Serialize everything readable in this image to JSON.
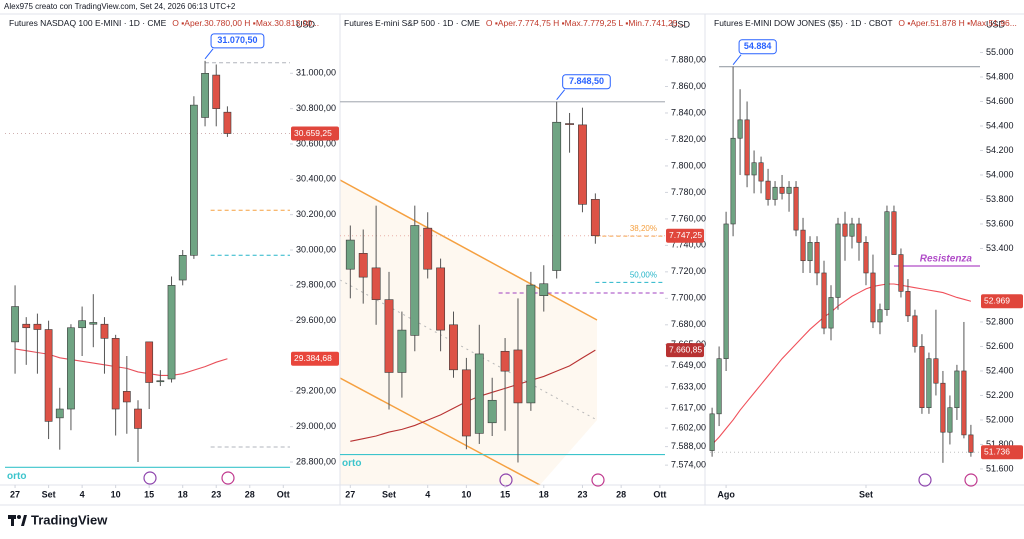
{
  "header": {
    "text": "Alex975 creato con TradingView.com, Set 24, 2026 06:13 UTC+2"
  },
  "footer": {
    "logo": "TradingView"
  },
  "chart_data": [
    {
      "type": "candlestick",
      "title": "Futures NASDAQ 100 E-MINI · 1D · CME",
      "legend_text": "O ▪Aper.30.780,00  H ▪Max.30.813,00...",
      "axis_unit": "USD",
      "up_color": "#6fa483",
      "down_color": "#dd5246",
      "ma_color": "#e8505a",
      "xlim": [
        -0.9,
        24.6
      ],
      "ylim": [
        28670,
        31330
      ],
      "xticks": [
        {
          "value": 0,
          "label": "27"
        },
        {
          "value": 3,
          "label": "Set"
        },
        {
          "value": 6,
          "label": "4"
        },
        {
          "value": 9,
          "label": "10"
        },
        {
          "value": 12,
          "label": "15"
        },
        {
          "value": 15,
          "label": "18"
        },
        {
          "value": 18,
          "label": "23"
        },
        {
          "value": 21,
          "label": "28"
        },
        {
          "value": 24,
          "label": "Ott"
        }
      ],
      "yticks": [
        {
          "value": 31000,
          "label": "31.000,00"
        },
        {
          "value": 30800,
          "label": "30.800,00"
        },
        {
          "value": 30600,
          "label": "30.600,00"
        },
        {
          "value": 30400,
          "label": "30.400,00"
        },
        {
          "value": 30200,
          "label": "30.200,00"
        },
        {
          "value": 30000,
          "label": "30.000,00"
        },
        {
          "value": 29800,
          "label": "29.800,00"
        },
        {
          "value": 29600,
          "label": "29.600,00"
        },
        {
          "value": 29200,
          "label": "29.200,00"
        },
        {
          "value": 29000,
          "label": "29.000,00"
        },
        {
          "value": 28800,
          "label": "28.800,00"
        }
      ],
      "open": [
        29480,
        29580,
        29580,
        29550,
        29050,
        29100,
        29560,
        29580,
        29580,
        29500,
        29200,
        29100,
        29480,
        29260,
        29270,
        29830,
        29970,
        30750,
        30990,
        30780
      ],
      "high": [
        29800,
        29620,
        29640,
        29600,
        29220,
        29580,
        29680,
        29750,
        29620,
        29520,
        29400,
        29150,
        29480,
        29320,
        29850,
        30000,
        30870,
        31070.5,
        31050,
        30813
      ],
      "low": [
        29300,
        29350,
        29300,
        28930,
        28870,
        28980,
        29400,
        29450,
        29300,
        28950,
        28960,
        28800,
        29100,
        29230,
        29250,
        29800,
        29950,
        30700,
        30700,
        30640
      ],
      "close": [
        29680,
        29560,
        29550,
        29030,
        29100,
        29560,
        29600,
        29590,
        29500,
        29100,
        29140,
        28990,
        29250,
        29260,
        29800,
        29970,
        30820,
        31000,
        30800,
        30659.25
      ],
      "ma": [
        29440,
        29430,
        29420,
        29410,
        29390,
        29380,
        29370,
        29360,
        29350,
        29340,
        29330,
        29310,
        29300,
        29290,
        29290,
        29300,
        29320,
        29340,
        29365,
        29384.68
      ],
      "high_label": {
        "index": 17,
        "value": 31070.5,
        "label": "31.070,50"
      },
      "hlines": [
        {
          "value": 31060,
          "color": "#b0b4bc",
          "style": "dashed",
          "x0": 17
        },
        {
          "value": 30225,
          "color": "#f5a040",
          "style": "dashed",
          "x0": 17.5
        },
        {
          "value": 29970,
          "color": "#26b5c9",
          "style": "dashed",
          "x0": 17.5
        },
        {
          "value": 28885,
          "color": "#b0b4bc",
          "style": "dashed",
          "x0": 17.5
        },
        {
          "value": 30659.25,
          "color": "#d0b0b0",
          "style": "dotted",
          "x0": -0.9
        },
        {
          "value": 28770,
          "color": "#3cc4cc",
          "style": "solid",
          "x0": -0.9,
          "label": "orto",
          "label_at": "start"
        }
      ],
      "price_tags": [
        {
          "value": 30659.25,
          "label": "30.659,25",
          "color": "#e0463c"
        },
        {
          "value": 29384.68,
          "label": "29.384,68",
          "color": "#e8463c"
        }
      ]
    },
    {
      "type": "candlestick",
      "title": "Futures E-mini S&P 500 · 1D · CME",
      "legend_text": "O ▪Aper.7.774,75  H ▪Max.7.779,25  L ▪Min.7.741,25...",
      "axis_unit": "USD",
      "up_color": "#6fa483",
      "down_color": "#dd5246",
      "ma_color": "#b83232",
      "xlim": [
        -0.8,
        24.4
      ],
      "ylim": [
        7559,
        7914
      ],
      "xticks": [
        {
          "value": 0,
          "label": "27"
        },
        {
          "value": 3,
          "label": "Set"
        },
        {
          "value": 6,
          "label": "4"
        },
        {
          "value": 9,
          "label": "10"
        },
        {
          "value": 12,
          "label": "15"
        },
        {
          "value": 15,
          "label": "18"
        },
        {
          "value": 18,
          "label": "23"
        },
        {
          "value": 21,
          "label": "28"
        },
        {
          "value": 24,
          "label": "Ott"
        }
      ],
      "yticks": [
        {
          "value": 7880,
          "label": "7.880,00"
        },
        {
          "value": 7860,
          "label": "7.860,00"
        },
        {
          "value": 7840,
          "label": "7.840,00"
        },
        {
          "value": 7820,
          "label": "7.820,00"
        },
        {
          "value": 7800,
          "label": "7.800,00"
        },
        {
          "value": 7780,
          "label": "7.780,00"
        },
        {
          "value": 7760,
          "label": "7.760,00"
        },
        {
          "value": 7740,
          "label": "7.740,00"
        },
        {
          "value": 7720,
          "label": "7.720,00"
        },
        {
          "value": 7700,
          "label": "7.700,00"
        },
        {
          "value": 7680,
          "label": "7.680,00"
        },
        {
          "value": 7665,
          "label": "7.665,00"
        },
        {
          "value": 7649,
          "label": "7.649,00"
        },
        {
          "value": 7633,
          "label": "7.633,00"
        },
        {
          "value": 7617,
          "label": "7.617,00"
        },
        {
          "value": 7602,
          "label": "7.602,00"
        },
        {
          "value": 7588,
          "label": "7.588,00"
        },
        {
          "value": 7574,
          "label": "7.574,00"
        }
      ],
      "open": [
        7722,
        7734,
        7723,
        7699,
        7644,
        7672,
        7753,
        7723,
        7680,
        7646,
        7598,
        7606,
        7660,
        7661,
        7621,
        7702,
        7721,
        7832,
        7831,
        7774.75
      ],
      "high": [
        7755,
        7752,
        7770,
        7720,
        7690,
        7770,
        7765,
        7730,
        7690,
        7655,
        7680,
        7640,
        7670,
        7700,
        7720,
        7725,
        7848.5,
        7840,
        7844,
        7779.25
      ],
      "low": [
        7700,
        7696,
        7680,
        7616,
        7625,
        7660,
        7715,
        7660,
        7640,
        7586,
        7590,
        7596,
        7600,
        7576,
        7615,
        7690,
        7715,
        7810,
        7765,
        7741.25
      ],
      "close": [
        7744,
        7716,
        7699,
        7644,
        7676,
        7755,
        7722,
        7676,
        7646,
        7596,
        7658,
        7623,
        7645,
        7621,
        7710,
        7711,
        7833,
        7831.5,
        7771,
        7747.25
      ],
      "ma": [
        7592,
        7594,
        7596,
        7599,
        7601,
        7604,
        7608,
        7612,
        7617,
        7622,
        7626,
        7629,
        7632,
        7635,
        7638,
        7641,
        7645,
        7649,
        7655,
        7660.85
      ],
      "high_label": {
        "index": 16,
        "value": 7848.5,
        "label": "7.848,50"
      },
      "hlines": [
        {
          "value": 7848.5,
          "color": "#b0b4bc",
          "style": "solid",
          "x0": -0.8
        },
        {
          "value": 7747,
          "color": "#f5a040",
          "style": "dashed",
          "x0": 19,
          "label": "38,20%",
          "label_at": "end"
        },
        {
          "value": 7712,
          "color": "#26b5c9",
          "style": "dashed",
          "x0": 19,
          "label": "50,00%",
          "label_at": "end"
        },
        {
          "value": 7704,
          "color": "#a040c0",
          "style": "dashed",
          "x0": 11.5
        },
        {
          "value": 7747.25,
          "color": "#e8b0a8",
          "style": "dotted",
          "x0": -0.8
        },
        {
          "value": 7582,
          "color": "#3cc4cc",
          "style": "solid",
          "x0": -0.8,
          "label": "orto",
          "label_at": "start"
        }
      ],
      "price_tags": [
        {
          "value": 7747.25,
          "label": "7.747,25",
          "color": "#e0463c"
        },
        {
          "value": 7660.85,
          "label": "7.660,85",
          "color": "#b83232"
        }
      ]
    },
    {
      "type": "candlestick",
      "title": "Futures E-MINI DOW JONES ($5) · 1D · CBOT",
      "legend_text": "O ▪Aper.51.878  H ▪Max.51.96...",
      "axis_unit": "USD",
      "up_color": "#6fa483",
      "down_color": "#dd5246",
      "ma_color": "#f0505a",
      "xlim": [
        -0.3,
        38.3
      ],
      "ylim": [
        51469,
        55306
      ],
      "xticks": [
        {
          "value": 2,
          "label": "Ago"
        },
        {
          "value": 22,
          "label": "Set"
        }
      ],
      "yticks": [
        {
          "value": 55000,
          "label": "55.000"
        },
        {
          "value": 54800,
          "label": "54.800"
        },
        {
          "value": 54600,
          "label": "54.600"
        },
        {
          "value": 54400,
          "label": "54.400"
        },
        {
          "value": 54200,
          "label": "54.200"
        },
        {
          "value": 54000,
          "label": "54.000"
        },
        {
          "value": 53800,
          "label": "53.800"
        },
        {
          "value": 53600,
          "label": "53.600"
        },
        {
          "value": 53400,
          "label": "53.400"
        },
        {
          "value": 52800,
          "label": "52.800"
        },
        {
          "value": 52600,
          "label": "52.600"
        },
        {
          "value": 52400,
          "label": "52.400"
        },
        {
          "value": 52200,
          "label": "52.200"
        },
        {
          "value": 52000,
          "label": "52.000"
        },
        {
          "value": 51800,
          "label": "51.800"
        },
        {
          "value": 51600,
          "label": "51.600"
        }
      ],
      "open": [
        51750,
        52050,
        52500,
        53600,
        54300,
        54450,
        54000,
        54100,
        53950,
        53800,
        53900,
        53850,
        53900,
        53550,
        53300,
        53450,
        53200,
        52750,
        53000,
        53600,
        53500,
        53600,
        53450,
        53200,
        52800,
        52900,
        53700,
        53350,
        53050,
        52850,
        52600,
        52100,
        52500,
        52300,
        51900,
        52100,
        52400,
        51878
      ],
      "high": [
        52100,
        52600,
        53700,
        54884,
        54700,
        54600,
        54200,
        54150,
        54050,
        53950,
        54000,
        53950,
        53950,
        53650,
        53500,
        53500,
        53300,
        53100,
        53650,
        53700,
        53650,
        53650,
        53500,
        53350,
        52950,
        53750,
        53750,
        53400,
        53150,
        52900,
        52700,
        52550,
        52900,
        52400,
        52200,
        52450,
        52800,
        51960
      ],
      "low": [
        51700,
        51950,
        52400,
        53500,
        54000,
        53900,
        53850,
        53850,
        53750,
        53750,
        53800,
        53700,
        53500,
        53200,
        53200,
        53100,
        52700,
        52650,
        52900,
        53300,
        53400,
        53300,
        53100,
        52750,
        52700,
        52850,
        53350,
        53000,
        52800,
        52550,
        52050,
        52050,
        52200,
        51650,
        51800,
        52000,
        51850,
        51700
      ],
      "close": [
        52050,
        52500,
        53600,
        54300,
        54450,
        54000,
        54100,
        53950,
        53800,
        53900,
        53850,
        53900,
        53550,
        53300,
        53450,
        53200,
        52750,
        53000,
        53600,
        53500,
        53600,
        53450,
        53200,
        52800,
        52900,
        53700,
        53350,
        53050,
        52850,
        52600,
        52100,
        52500,
        52300,
        51900,
        52100,
        52400,
        51878,
        51736
      ],
      "ma": [
        51800,
        51860,
        51930,
        52000,
        52080,
        52150,
        52220,
        52290,
        52360,
        52430,
        52500,
        52560,
        52620,
        52680,
        52740,
        52790,
        52840,
        52880,
        52930,
        52970,
        53010,
        53040,
        53070,
        53090,
        53100,
        53110,
        53110,
        53100,
        53090,
        53080,
        53070,
        53060,
        53050,
        53040,
        53020,
        53000,
        52985,
        52969
      ],
      "high_label": {
        "index": 3,
        "value": 54884,
        "label": "54.884"
      },
      "hlines": [
        {
          "value": 54884,
          "color": "#9aa0a8",
          "style": "solid",
          "x0": 1
        },
        {
          "value": 53257,
          "color": "#b04cc8",
          "style": "solid",
          "x0": 26,
          "label": "Resistenza",
          "label_at": "end"
        },
        {
          "value": 51736,
          "color": "#c0c0c0",
          "style": "dotted",
          "x0": -0.3
        }
      ],
      "price_tags": [
        {
          "value": 52969,
          "label": "52.969",
          "color": "#e0463c"
        },
        {
          "value": 51736,
          "label": "51.736",
          "color": "#e0463c"
        }
      ]
    }
  ]
}
